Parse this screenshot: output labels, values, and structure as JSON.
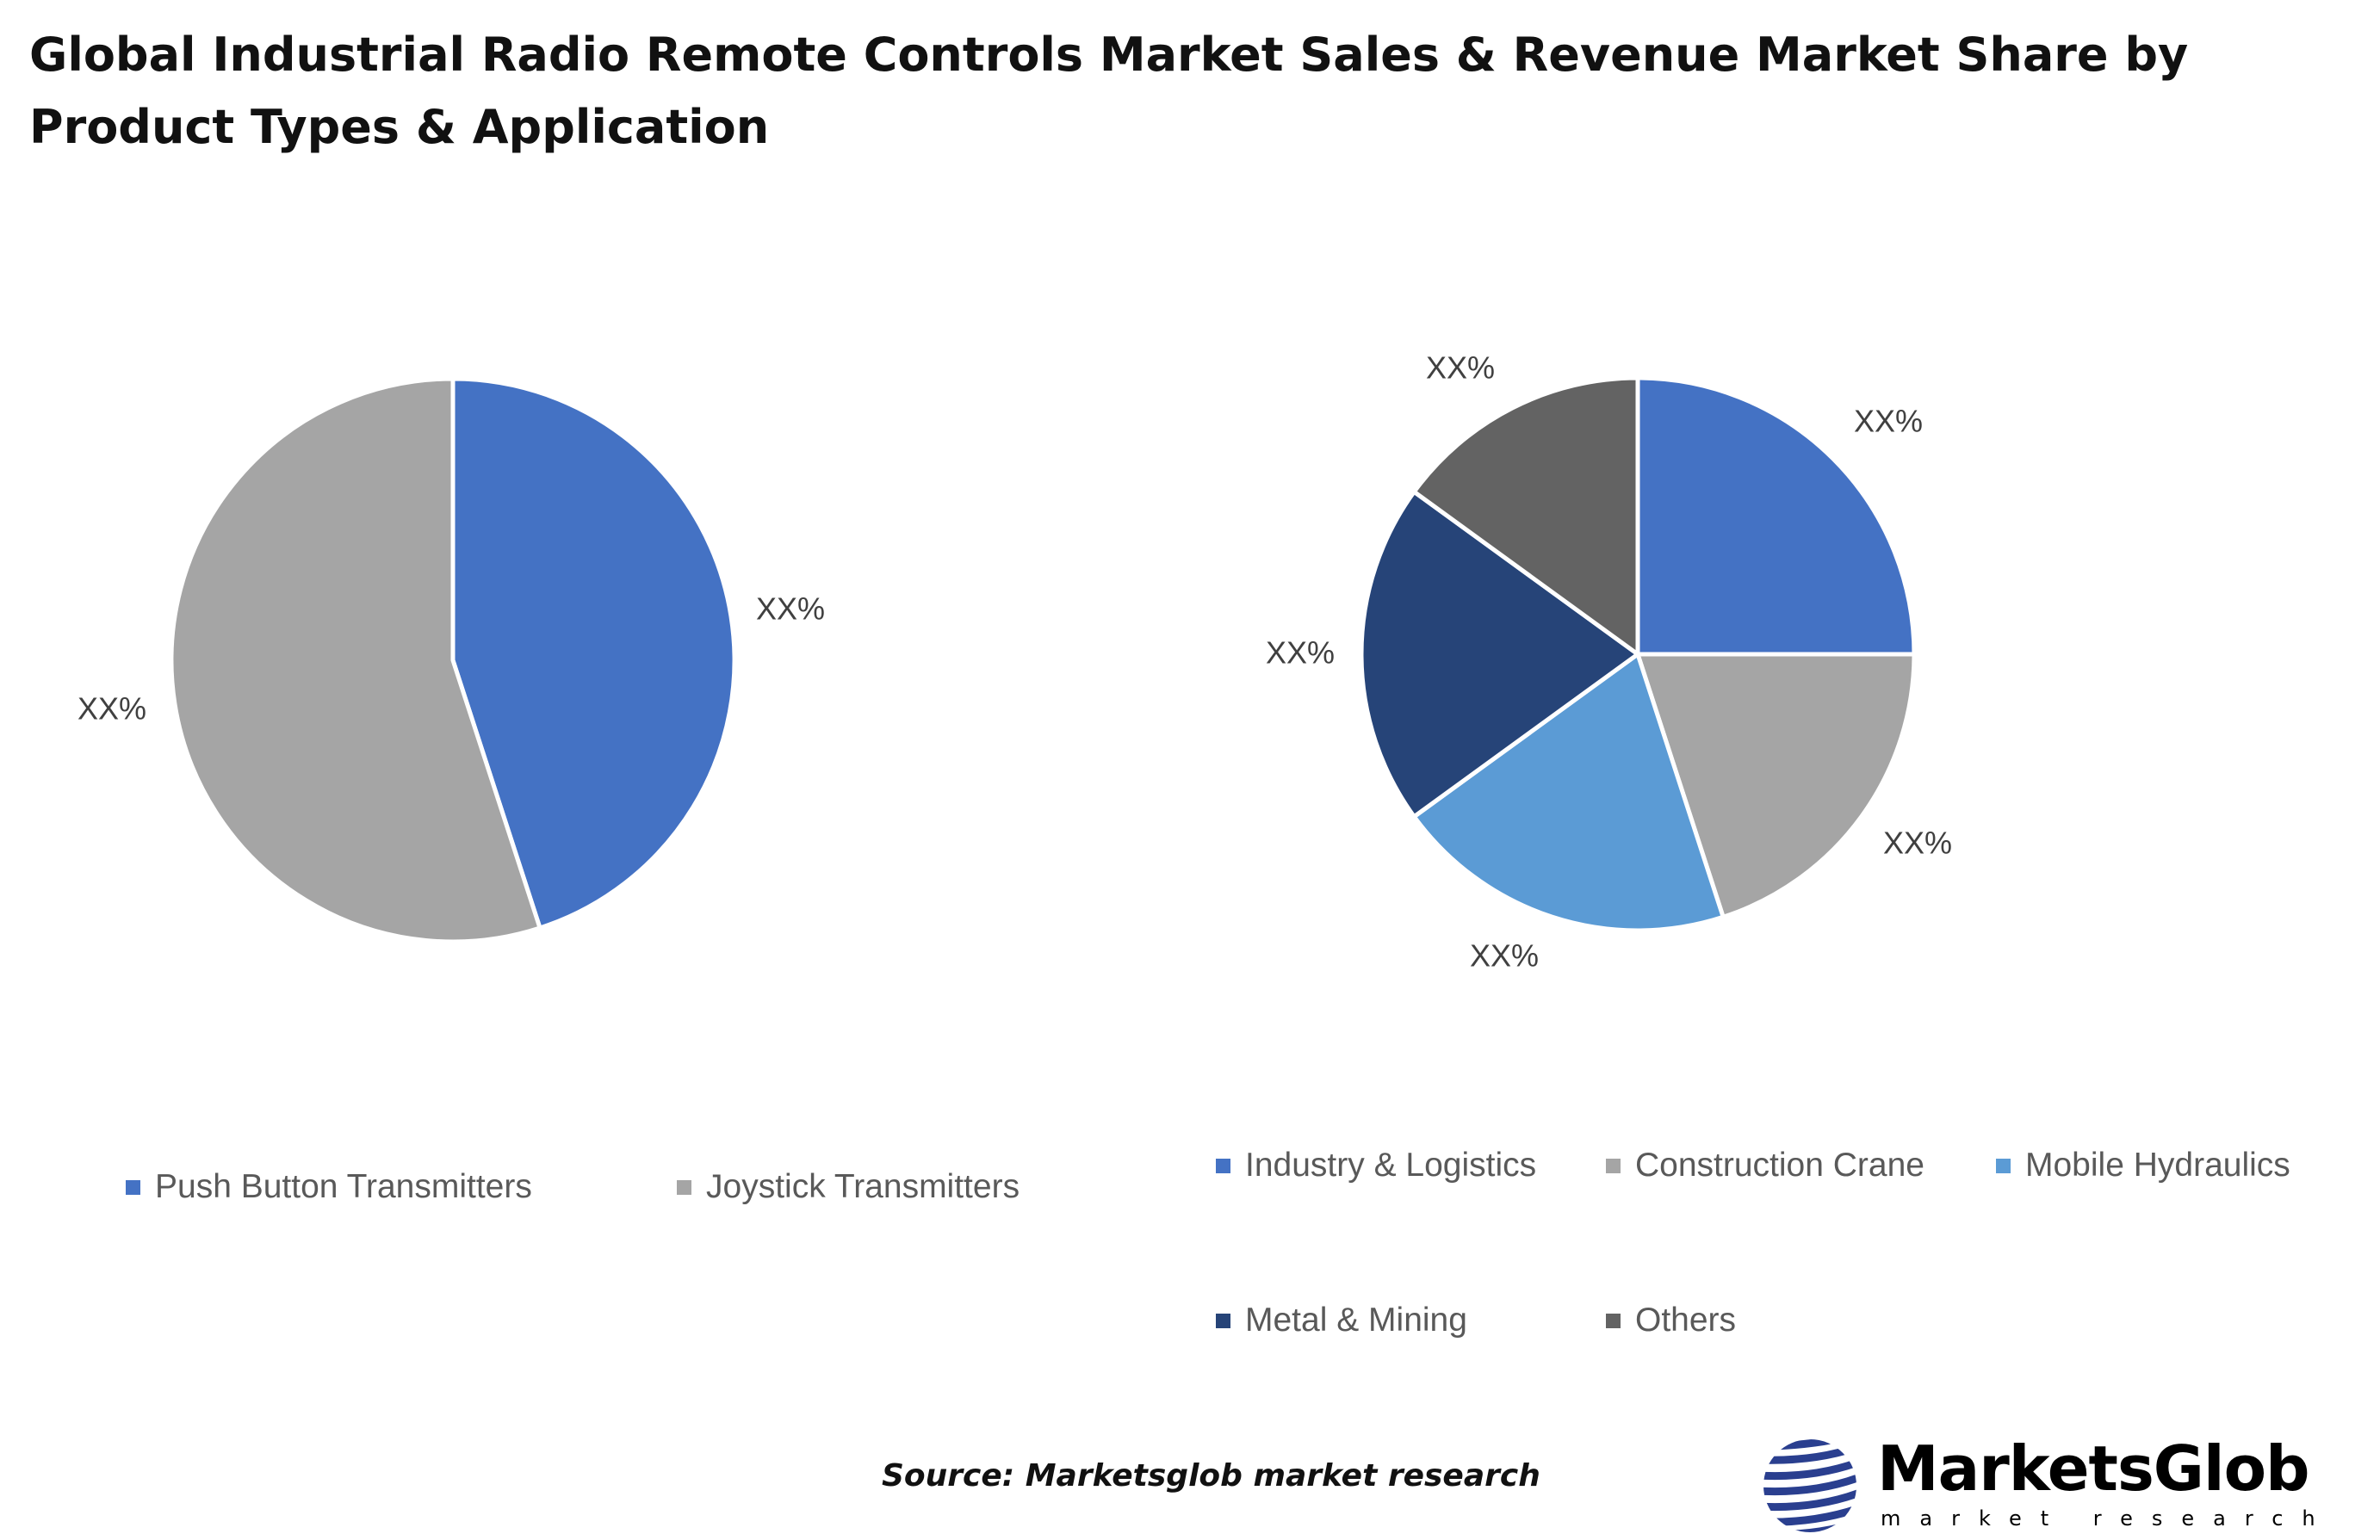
{
  "title": "Global Industrial Radio Remote Controls Market Sales & Revenue Market Share by Product Types & Application",
  "chart_data": [
    {
      "type": "pie",
      "categories": [
        "Push Button Transmitters",
        "Joystick Transmitters"
      ],
      "values": [
        45,
        55
      ],
      "data_labels": [
        "XX%",
        "XX%"
      ],
      "colors": [
        "#4472C4",
        "#A5A5A5"
      ],
      "legend": "bottom"
    },
    {
      "type": "pie",
      "categories": [
        "Industry & Logistics",
        "Construction Crane",
        "Mobile Hydraulics",
        "Metal & Mining",
        "Others"
      ],
      "values": [
        25,
        20,
        20,
        20,
        15
      ],
      "data_labels": [
        "XX%",
        "XX%",
        "XX%",
        "XX%",
        "XX%"
      ],
      "colors": [
        "#4472C4",
        "#A5A5A5",
        "#5B9BD5",
        "#264478",
        "#636363"
      ],
      "legend": "bottom"
    }
  ],
  "source": "Source: Marketsglob market research",
  "logo": {
    "name": "MarketsGlob",
    "tagline": "market research"
  }
}
